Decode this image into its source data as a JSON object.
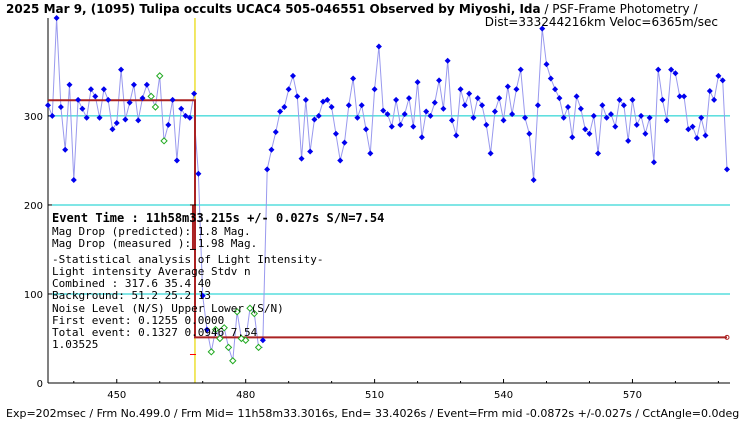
{
  "header": {
    "title_bold": "2025 Mar 9, (1095) Tulipa occults UCAC4 505-046551 Observed by Miyoshi, Ida",
    "title_normal": " / PSF-Frame Photometry /",
    "subtitle": "Dist=333244216km Veloc=6365m/sec"
  },
  "stats": {
    "event_time": "Event Time : 11h58m33.215s +/- 0.027s S/N=7.54",
    "mag_drop_pred": "Mag Drop (predicted):  1.8   Mag.",
    "mag_drop_meas": "Mag Drop (measured ):  1.98  Mag.",
    "stat_title": "-Statistical analysis of Light Intensity-",
    "li_header": "Light intensity    Average   Stdv      n",
    "combined": "  Combined  :        317.6     35.4     40",
    "background": "  Background:         51.2     25.2     13",
    "noise_header": "Noise Level (N/S)   Upper     Lower    (S/N)",
    "first_event": "  First event:       0.1255    0.0000",
    "total_event": "  Total event:       0.1327    0.0946    7.54",
    "extra_value": "1.03525"
  },
  "footer": "Exp=202msec / Frm No.499.0 / Frm Mid= 11h58m33.3016s,  End= 33.4026s / Event=Frm mid -0.0872s +/-0.027s / CctAngle=0.0deg",
  "colors": {
    "blue_points": "#0000ee",
    "green_points": "#22aa22",
    "line": "#9999ee",
    "model": "#aa2222",
    "hgrid": "#00cccc",
    "event_line": "#e8d800"
  },
  "chart_data": {
    "type": "line",
    "xlim": [
      434,
      592
    ],
    "ylim": [
      0,
      410
    ],
    "x_ticks": [
      450,
      480,
      510,
      540,
      570
    ],
    "y_ticks": [
      0,
      100,
      200,
      300
    ],
    "grid_y": [
      100,
      200,
      300
    ],
    "event_frame": 468.2,
    "model": {
      "high": 317.6,
      "low": 51.2,
      "x_start": 434,
      "x_event": 468.2,
      "x_end": 592
    },
    "series": [
      {
        "points": [
          [
            434,
            312
          ],
          [
            435,
            300
          ],
          [
            436,
            410
          ],
          [
            437,
            310
          ],
          [
            438,
            262
          ],
          [
            439,
            335
          ],
          [
            440,
            228
          ],
          [
            441,
            318
          ],
          [
            442,
            308
          ],
          [
            443,
            298
          ],
          [
            444,
            330
          ],
          [
            445,
            322
          ],
          [
            446,
            298
          ],
          [
            447,
            330
          ],
          [
            448,
            318
          ],
          [
            449,
            285
          ],
          [
            450,
            292
          ],
          [
            451,
            352
          ],
          [
            452,
            296
          ],
          [
            453,
            315
          ],
          [
            454,
            335
          ],
          [
            455,
            295
          ],
          [
            456,
            320
          ],
          [
            457,
            335
          ],
          [
            458,
            322
          ]
        ]
      },
      {
        "points": [
          [
            458,
            322
          ],
          [
            459,
            310
          ],
          [
            460,
            345
          ],
          [
            461,
            272
          ],
          [
            462,
            290
          ],
          [
            463,
            318
          ],
          [
            464,
            250
          ],
          [
            465,
            308
          ],
          [
            466,
            300
          ],
          [
            467,
            298
          ],
          [
            468,
            325
          ]
        ]
      },
      {
        "points": [
          [
            468,
            300
          ],
          [
            469,
            235
          ],
          [
            470,
            98
          ],
          [
            471,
            60
          ],
          [
            472,
            35
          ],
          [
            473,
            60
          ],
          [
            474,
            50
          ],
          [
            475,
            62
          ],
          [
            476,
            40
          ],
          [
            477,
            25
          ],
          [
            478,
            80
          ],
          [
            479,
            50
          ],
          [
            480,
            48
          ],
          [
            481,
            84
          ],
          [
            482,
            78
          ],
          [
            483,
            40
          ],
          [
            484,
            40
          ]
        ]
      },
      {
        "points": [
          [
            484,
            48
          ],
          [
            485,
            240
          ],
          [
            486,
            262
          ],
          [
            487,
            282
          ],
          [
            488,
            305
          ],
          [
            489,
            310
          ],
          [
            490,
            330
          ],
          [
            491,
            345
          ],
          [
            492,
            322
          ],
          [
            493,
            252
          ],
          [
            494,
            318
          ],
          [
            495,
            260
          ],
          [
            496,
            296
          ],
          [
            497,
            300
          ],
          [
            498,
            316
          ],
          [
            499,
            318
          ],
          [
            500,
            310
          ]
        ]
      },
      {
        "points": [
          [
            500,
            310
          ],
          [
            501,
            280
          ],
          [
            502,
            250
          ],
          [
            503,
            270
          ],
          [
            504,
            312
          ],
          [
            505,
            342
          ],
          [
            506,
            298
          ],
          [
            507,
            312
          ],
          [
            508,
            285
          ],
          [
            509,
            258
          ],
          [
            510,
            330
          ],
          [
            511,
            378
          ],
          [
            512,
            306
          ],
          [
            513,
            302
          ],
          [
            514,
            288
          ],
          [
            515,
            318
          ],
          [
            516,
            290
          ],
          [
            517,
            302
          ],
          [
            518,
            320
          ],
          [
            519,
            288
          ],
          [
            520,
            338
          ],
          [
            521,
            276
          ],
          [
            522,
            305
          ],
          [
            523,
            300
          ],
          [
            524,
            315
          ],
          [
            525,
            340
          ],
          [
            526,
            308
          ],
          [
            527,
            362
          ],
          [
            528,
            295
          ],
          [
            529,
            278
          ]
        ]
      },
      {
        "points": [
          [
            529,
            278
          ],
          [
            530,
            330
          ],
          [
            531,
            312
          ],
          [
            532,
            325
          ],
          [
            533,
            298
          ],
          [
            534,
            320
          ],
          [
            535,
            312
          ],
          [
            536,
            290
          ],
          [
            537,
            258
          ],
          [
            538,
            305
          ],
          [
            539,
            320
          ],
          [
            540,
            295
          ],
          [
            541,
            333
          ],
          [
            542,
            302
          ],
          [
            543,
            330
          ],
          [
            544,
            352
          ],
          [
            545,
            298
          ]
        ]
      },
      {
        "points": [
          [
            545,
            298
          ],
          [
            546,
            280
          ],
          [
            547,
            228
          ],
          [
            548,
            312
          ],
          [
            549,
            398
          ],
          [
            550,
            358
          ],
          [
            551,
            342
          ],
          [
            552,
            330
          ],
          [
            553,
            320
          ],
          [
            554,
            298
          ],
          [
            555,
            310
          ],
          [
            556,
            276
          ],
          [
            557,
            322
          ],
          [
            558,
            308
          ],
          [
            559,
            285
          ],
          [
            560,
            280
          ],
          [
            561,
            300
          ],
          [
            562,
            258
          ],
          [
            563,
            312
          ],
          [
            564,
            298
          ],
          [
            565,
            302
          ],
          [
            566,
            288
          ]
        ]
      },
      {
        "points": [
          [
            566,
            288
          ],
          [
            567,
            318
          ],
          [
            568,
            312
          ],
          [
            569,
            272
          ],
          [
            570,
            318
          ],
          [
            571,
            290
          ],
          [
            572,
            300
          ],
          [
            573,
            280
          ],
          [
            574,
            298
          ],
          [
            575,
            248
          ],
          [
            576,
            352
          ],
          [
            577,
            318
          ],
          [
            578,
            295
          ],
          [
            579,
            352
          ],
          [
            580,
            348
          ],
          [
            581,
            322
          ],
          [
            582,
            322
          ]
        ]
      },
      {
        "points": [
          [
            582,
            322
          ],
          [
            583,
            285
          ],
          [
            584,
            288
          ],
          [
            585,
            275
          ],
          [
            586,
            298
          ],
          [
            587,
            278
          ],
          [
            588,
            328
          ],
          [
            589,
            318
          ],
          [
            590,
            345
          ],
          [
            591,
            340
          ],
          [
            592,
            240
          ]
        ]
      }
    ],
    "blue_points": [
      [
        434,
        312
      ],
      [
        435,
        300
      ],
      [
        436,
        410
      ],
      [
        437,
        310
      ],
      [
        438,
        262
      ],
      [
        439,
        335
      ],
      [
        440,
        228
      ],
      [
        441,
        318
      ],
      [
        442,
        308
      ],
      [
        443,
        298
      ],
      [
        444,
        330
      ],
      [
        445,
        322
      ],
      [
        446,
        298
      ],
      [
        447,
        330
      ],
      [
        448,
        318
      ],
      [
        449,
        285
      ],
      [
        450,
        292
      ],
      [
        451,
        352
      ],
      [
        452,
        296
      ],
      [
        453,
        315
      ],
      [
        454,
        335
      ],
      [
        455,
        295
      ],
      [
        456,
        320
      ],
      [
        457,
        335
      ],
      [
        458,
        322
      ],
      [
        462,
        290
      ],
      [
        463,
        318
      ],
      [
        464,
        250
      ],
      [
        465,
        308
      ],
      [
        466,
        300
      ],
      [
        467,
        298
      ],
      [
        468,
        325
      ],
      [
        469,
        235
      ],
      [
        470,
        98
      ],
      [
        471,
        60
      ],
      [
        484,
        48
      ],
      [
        485,
        240
      ],
      [
        486,
        262
      ],
      [
        487,
        282
      ],
      [
        488,
        305
      ],
      [
        489,
        310
      ],
      [
        490,
        330
      ],
      [
        491,
        345
      ],
      [
        492,
        322
      ],
      [
        493,
        252
      ],
      [
        494,
        318
      ],
      [
        495,
        260
      ],
      [
        496,
        296
      ],
      [
        497,
        300
      ],
      [
        498,
        316
      ],
      [
        499,
        318
      ],
      [
        500,
        310
      ],
      [
        501,
        280
      ],
      [
        502,
        250
      ],
      [
        503,
        270
      ],
      [
        504,
        312
      ],
      [
        505,
        342
      ],
      [
        506,
        298
      ],
      [
        507,
        312
      ],
      [
        508,
        285
      ],
      [
        509,
        258
      ],
      [
        510,
        330
      ],
      [
        511,
        378
      ],
      [
        512,
        306
      ],
      [
        513,
        302
      ],
      [
        514,
        288
      ],
      [
        515,
        318
      ],
      [
        516,
        290
      ],
      [
        517,
        302
      ],
      [
        518,
        320
      ],
      [
        519,
        288
      ],
      [
        520,
        338
      ],
      [
        521,
        276
      ],
      [
        522,
        305
      ],
      [
        523,
        300
      ],
      [
        524,
        315
      ],
      [
        525,
        340
      ],
      [
        526,
        308
      ],
      [
        527,
        362
      ],
      [
        528,
        295
      ],
      [
        529,
        278
      ],
      [
        530,
        330
      ],
      [
        531,
        312
      ],
      [
        532,
        325
      ],
      [
        533,
        298
      ],
      [
        534,
        320
      ],
      [
        535,
        312
      ],
      [
        536,
        290
      ],
      [
        537,
        258
      ],
      [
        538,
        305
      ],
      [
        539,
        320
      ],
      [
        540,
        295
      ],
      [
        541,
        333
      ],
      [
        542,
        302
      ],
      [
        543,
        330
      ],
      [
        544,
        352
      ],
      [
        545,
        298
      ],
      [
        546,
        280
      ],
      [
        547,
        228
      ],
      [
        548,
        312
      ],
      [
        549,
        398
      ],
      [
        550,
        358
      ],
      [
        551,
        342
      ],
      [
        552,
        330
      ],
      [
        553,
        320
      ],
      [
        554,
        298
      ],
      [
        555,
        310
      ],
      [
        556,
        276
      ],
      [
        557,
        322
      ],
      [
        558,
        308
      ],
      [
        559,
        285
      ],
      [
        560,
        280
      ],
      [
        561,
        300
      ],
      [
        562,
        258
      ],
      [
        563,
        312
      ],
      [
        564,
        298
      ],
      [
        565,
        302
      ],
      [
        566,
        288
      ],
      [
        567,
        318
      ],
      [
        568,
        312
      ],
      [
        569,
        272
      ],
      [
        570,
        318
      ],
      [
        571,
        290
      ],
      [
        572,
        300
      ],
      [
        573,
        280
      ],
      [
        574,
        298
      ],
      [
        575,
        248
      ],
      [
        576,
        352
      ],
      [
        577,
        318
      ],
      [
        578,
        295
      ],
      [
        579,
        352
      ],
      [
        580,
        348
      ],
      [
        581,
        322
      ],
      [
        582,
        322
      ],
      [
        583,
        285
      ],
      [
        584,
        288
      ],
      [
        585,
        275
      ],
      [
        586,
        298
      ],
      [
        587,
        278
      ],
      [
        588,
        328
      ],
      [
        589,
        318
      ],
      [
        590,
        345
      ],
      [
        591,
        340
      ],
      [
        592,
        240
      ]
    ],
    "green_points": [
      [
        458,
        322
      ],
      [
        459,
        310
      ],
      [
        460,
        345
      ],
      [
        461,
        272
      ],
      [
        472,
        35
      ],
      [
        473,
        60
      ],
      [
        474,
        50
      ],
      [
        475,
        62
      ],
      [
        476,
        40
      ],
      [
        477,
        25
      ],
      [
        478,
        80
      ],
      [
        479,
        50
      ],
      [
        480,
        48
      ],
      [
        481,
        84
      ],
      [
        482,
        78
      ],
      [
        483,
        40
      ]
    ]
  }
}
